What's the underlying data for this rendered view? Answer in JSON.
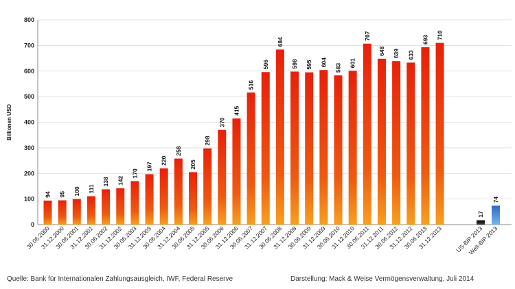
{
  "chart_data": {
    "type": "bar",
    "ylabel": "Billionen USD",
    "ylim": [
      0,
      800
    ],
    "yticks": [
      0,
      100,
      200,
      300,
      400,
      500,
      600,
      700,
      800
    ],
    "grid": true,
    "categories": [
      "30.06.2000",
      "31.12.2000",
      "30.06.2001",
      "31.12.2001",
      "30.06.2002",
      "31.12.2002",
      "30.06.2003",
      "31.12.2003",
      "30.06.2004",
      "31.12.2004",
      "30.06.2005",
      "31.12.2005",
      "30.06.2006",
      "31.12.2006",
      "30.06.2007",
      "31.12.2007",
      "30.06.2008",
      "31.12.2008",
      "30.06.2009",
      "31.12.2009",
      "30.06.2010",
      "31.12.2010",
      "30.06.2011",
      "31.12.2011",
      "30.06.2012",
      "31.12.2012",
      "30.06.2013",
      "31.12.2013",
      "US-BIP 2013",
      "Welt-BIP 2013"
    ],
    "values": [
      94,
      95,
      100,
      111,
      138,
      142,
      170,
      197,
      220,
      258,
      205,
      298,
      370,
      415,
      516,
      596,
      684,
      598,
      595,
      604,
      583,
      601,
      707,
      648,
      639,
      633,
      693,
      710,
      17,
      74
    ],
    "bar_colors": {
      "main": "#e8380d",
      "us_gdp": "#1a1a1a",
      "world_gdp": "#3d7fd0"
    }
  },
  "footer": {
    "source": "Quelle: Bank für Internationalen Zahlungsausgleich, IWF, Federal Reserve",
    "credit": "Darstellung: Mack & Weise Vermögensverwaltung, Juli 2014"
  }
}
